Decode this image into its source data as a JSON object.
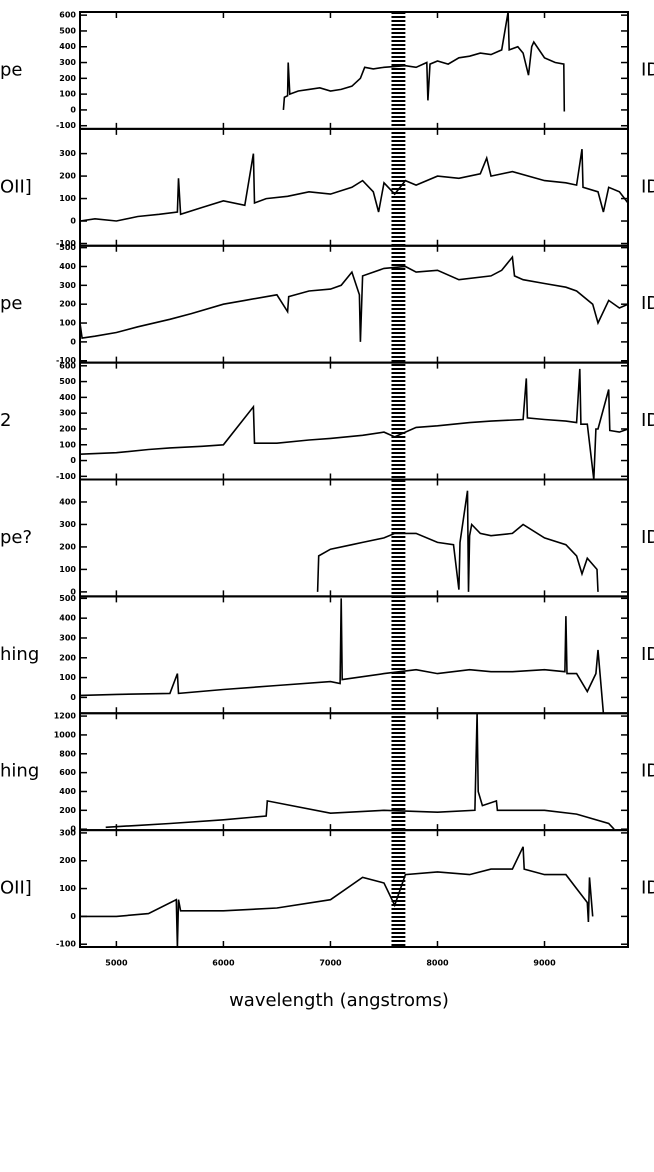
{
  "chart_data": [
    {
      "type": "line",
      "label": "pe",
      "right_label": "ID",
      "color": "#000000",
      "band": [
        7570,
        7700
      ],
      "xlim": [
        4660,
        9780
      ],
      "xticks": [
        5000,
        6000,
        7000,
        8000,
        9000
      ],
      "ylim": [
        -120,
        620
      ],
      "yticks": [
        -100,
        0,
        100,
        200,
        300,
        400,
        500,
        600
      ],
      "x": [
        6560,
        6570,
        6600,
        6605,
        6620,
        6700,
        6800,
        6900,
        7000,
        7100,
        7200,
        7280,
        7320,
        7400,
        7500,
        7700,
        7800,
        7900,
        7910,
        7930,
        8000,
        8100,
        8200,
        8300,
        8400,
        8500,
        8600,
        8660,
        8670,
        8750,
        8800,
        8850,
        8880,
        8900,
        9000,
        9100,
        9180,
        9185
      ],
      "series": [
        {
          "values": [
            0,
            80,
            90,
            300,
            100,
            120,
            130,
            140,
            120,
            130,
            150,
            200,
            270,
            260,
            270,
            280,
            270,
            300,
            60,
            290,
            310,
            290,
            330,
            340,
            360,
            350,
            380,
            620,
            380,
            400,
            360,
            220,
            400,
            430,
            330,
            300,
            290,
            -10
          ]
        }
      ]
    },
    {
      "type": "line",
      "label": "OII]",
      "right_label": "ID",
      "color": "#000000",
      "band": [
        7570,
        7700
      ],
      "xlim": [
        4660,
        9780
      ],
      "xticks": [
        5000,
        6000,
        7000,
        8000,
        9000
      ],
      "ylim": [
        -110,
        410
      ],
      "yticks": [
        -100,
        0,
        100,
        200,
        300
      ],
      "x": [
        4660,
        4800,
        5000,
        5200,
        5400,
        5570,
        5580,
        5600,
        5800,
        6000,
        6200,
        6280,
        6290,
        6400,
        6600,
        6800,
        7000,
        7200,
        7300,
        7400,
        7450,
        7500,
        7600,
        7700,
        7800,
        8000,
        8200,
        8400,
        8460,
        8500,
        8700,
        9000,
        9200,
        9300,
        9350,
        9360,
        9500,
        9550,
        9600,
        9700,
        9780
      ],
      "series": [
        {
          "values": [
            0,
            10,
            0,
            20,
            30,
            40,
            190,
            30,
            60,
            90,
            70,
            300,
            80,
            100,
            110,
            130,
            120,
            150,
            180,
            130,
            40,
            170,
            120,
            180,
            160,
            200,
            190,
            210,
            280,
            200,
            220,
            180,
            170,
            160,
            320,
            150,
            130,
            40,
            150,
            130,
            80
          ]
        }
      ]
    },
    {
      "type": "line",
      "label": "pe",
      "right_label": "ID",
      "color": "#000000",
      "band": [
        7570,
        7700
      ],
      "xlim": [
        4660,
        9780
      ],
      "xticks": [
        5000,
        6000,
        7000,
        8000,
        9000
      ],
      "ylim": [
        -110,
        510
      ],
      "yticks": [
        -100,
        0,
        100,
        200,
        300,
        400,
        500
      ],
      "x": [
        4660,
        4680,
        4800,
        5000,
        5200,
        5500,
        5700,
        6000,
        6200,
        6500,
        6600,
        6610,
        6800,
        7000,
        7100,
        7200,
        7270,
        7280,
        7300,
        7500,
        7700,
        7800,
        8000,
        8200,
        8500,
        8600,
        8700,
        8720,
        8800,
        9000,
        9200,
        9300,
        9450,
        9500,
        9600,
        9700,
        9780
      ],
      "series": [
        {
          "values": [
            100,
            20,
            30,
            50,
            80,
            120,
            150,
            200,
            220,
            250,
            160,
            240,
            270,
            280,
            300,
            370,
            250,
            0,
            350,
            390,
            400,
            370,
            380,
            330,
            350,
            380,
            450,
            350,
            330,
            310,
            290,
            270,
            200,
            100,
            220,
            180,
            200
          ]
        }
      ]
    },
    {
      "type": "line",
      "label": "2",
      "right_label": "ID",
      "color": "#000000",
      "band": [
        7570,
        7700
      ],
      "xlim": [
        4660,
        9780
      ],
      "xticks": [
        5000,
        6000,
        7000,
        8000,
        9000
      ],
      "ylim": [
        -120,
        620
      ],
      "yticks": [
        -100,
        0,
        100,
        200,
        300,
        400,
        500,
        600
      ],
      "x": [
        4660,
        5000,
        5300,
        5500,
        5800,
        6000,
        6280,
        6290,
        6500,
        6800,
        7000,
        7300,
        7500,
        7600,
        7800,
        8000,
        8300,
        8500,
        8800,
        8830,
        8840,
        9000,
        9200,
        9300,
        9330,
        9340,
        9400,
        9460,
        9480,
        9500,
        9600,
        9610,
        9700,
        9780
      ],
      "series": [
        {
          "values": [
            40,
            50,
            70,
            80,
            90,
            100,
            340,
            110,
            110,
            130,
            140,
            160,
            180,
            150,
            210,
            220,
            240,
            250,
            260,
            520,
            270,
            260,
            250,
            240,
            580,
            230,
            230,
            -120,
            200,
            200,
            450,
            190,
            180,
            200
          ]
        }
      ]
    },
    {
      "type": "line",
      "label": "pe?",
      "right_label": "ID",
      "color": "#000000",
      "band": [
        7570,
        7700
      ],
      "xlim": [
        4660,
        9780
      ],
      "xticks": [
        5000,
        6000,
        7000,
        8000,
        9000
      ],
      "ylim": [
        -20,
        500
      ],
      "yticks": [
        0,
        100,
        200,
        300,
        400
      ],
      "x": [
        6880,
        6890,
        7000,
        7200,
        7300,
        7500,
        7600,
        7800,
        8000,
        8150,
        8200,
        8210,
        8280,
        8290,
        8300,
        8320,
        8400,
        8500,
        8700,
        8800,
        9000,
        9200,
        9300,
        9350,
        9400,
        9490,
        9500
      ],
      "series": [
        {
          "values": [
            0,
            160,
            190,
            210,
            220,
            240,
            260,
            260,
            220,
            210,
            10,
            220,
            450,
            0,
            250,
            300,
            260,
            250,
            260,
            300,
            240,
            210,
            160,
            80,
            150,
            100,
            0
          ]
        }
      ]
    },
    {
      "type": "line",
      "label": "hing",
      "right_label": "ID",
      "color": "#000000",
      "band": [
        7570,
        7700
      ],
      "xlim": [
        4660,
        9780
      ],
      "xticks": [
        5000,
        6000,
        7000,
        8000,
        9000
      ],
      "ylim": [
        -80,
        510
      ],
      "yticks": [
        0,
        100,
        200,
        300,
        400,
        500
      ],
      "x": [
        4660,
        5000,
        5500,
        5570,
        5580,
        6000,
        6500,
        7000,
        7090,
        7100,
        7110,
        7500,
        7800,
        8000,
        8300,
        8500,
        8700,
        9000,
        9190,
        9200,
        9210,
        9300,
        9400,
        9480,
        9500,
        9550
      ],
      "series": [
        {
          "values": [
            10,
            15,
            20,
            120,
            20,
            40,
            60,
            80,
            70,
            500,
            90,
            120,
            140,
            120,
            140,
            130,
            130,
            140,
            130,
            410,
            120,
            120,
            30,
            120,
            240,
            -80
          ]
        }
      ]
    },
    {
      "type": "line",
      "label": "hing",
      "right_label": "ID",
      "color": "#000000",
      "band": [
        7570,
        7700
      ],
      "xlim": [
        4660,
        9780
      ],
      "xticks": [
        5000,
        6000,
        7000,
        8000,
        9000
      ],
      "ylim": [
        -10,
        1230
      ],
      "yticks": [
        0,
        200,
        400,
        600,
        800,
        1000,
        1200
      ],
      "x": [
        4900,
        5200,
        5500,
        6000,
        6400,
        6410,
        7000,
        7500,
        8000,
        8350,
        8370,
        8380,
        8420,
        8550,
        8560,
        8600,
        9000,
        9300,
        9600,
        9650
      ],
      "series": [
        {
          "values": [
            20,
            40,
            60,
            100,
            140,
            300,
            170,
            200,
            180,
            200,
            1230,
            400,
            250,
            300,
            200,
            200,
            200,
            160,
            60,
            0
          ]
        }
      ]
    },
    {
      "type": "line",
      "label": "OII]",
      "right_label": "ID",
      "color": "#000000",
      "band": [
        7570,
        7700
      ],
      "xlim": [
        4660,
        9780
      ],
      "xticks": [
        5000,
        6000,
        7000,
        8000,
        9000
      ],
      "xlabel": "wavelength (angstroms)",
      "ylim": [
        -110,
        310
      ],
      "yticks": [
        -100,
        0,
        100,
        200,
        300
      ],
      "x": [
        4660,
        5000,
        5300,
        5560,
        5570,
        5580,
        5600,
        6000,
        6500,
        7000,
        7300,
        7500,
        7600,
        7700,
        8000,
        8300,
        8500,
        8700,
        8800,
        8810,
        9000,
        9200,
        9300,
        9400,
        9410,
        9420,
        9450
      ],
      "series": [
        {
          "values": [
            0,
            0,
            10,
            60,
            -110,
            60,
            20,
            20,
            30,
            60,
            140,
            120,
            40,
            150,
            160,
            150,
            170,
            170,
            250,
            170,
            150,
            150,
            100,
            50,
            -20,
            140,
            0
          ]
        }
      ]
    }
  ]
}
